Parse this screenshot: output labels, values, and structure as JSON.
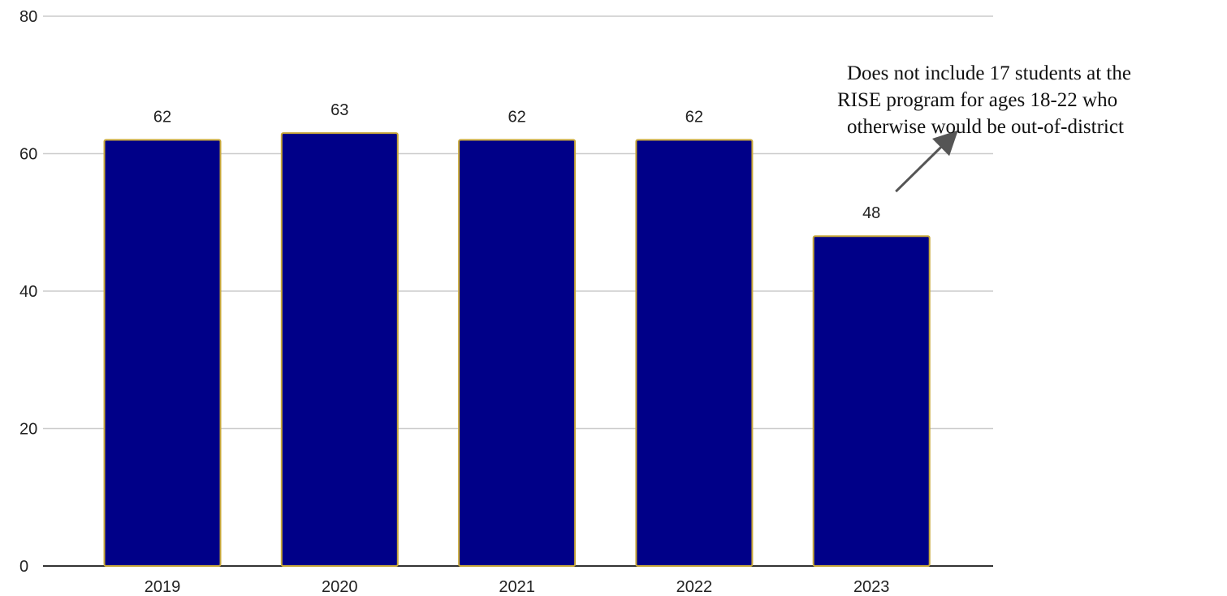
{
  "chart_data": {
    "type": "bar",
    "categories": [
      "2019",
      "2020",
      "2021",
      "2022",
      "2023"
    ],
    "values": [
      62,
      63,
      62,
      62,
      48
    ],
    "data_labels": [
      "62",
      "63",
      "62",
      "62",
      "48"
    ],
    "title": "",
    "xlabel": "",
    "ylabel": "",
    "ylim": [
      0,
      80
    ],
    "yticks": [
      0,
      20,
      40,
      60,
      80
    ],
    "grid": true,
    "legend": "none",
    "colors": {
      "bar_fill": "#000088",
      "bar_stroke": "#c8a83a",
      "grid": "#cccccc",
      "axis": "#333333",
      "arrow": "#555555"
    },
    "annotations": [
      {
        "target_category": "2023",
        "lines": [
          "Does not include 17 students at the",
          "RISE program for ages 18-22 who",
          "otherwise would be out-of-district"
        ]
      }
    ]
  }
}
